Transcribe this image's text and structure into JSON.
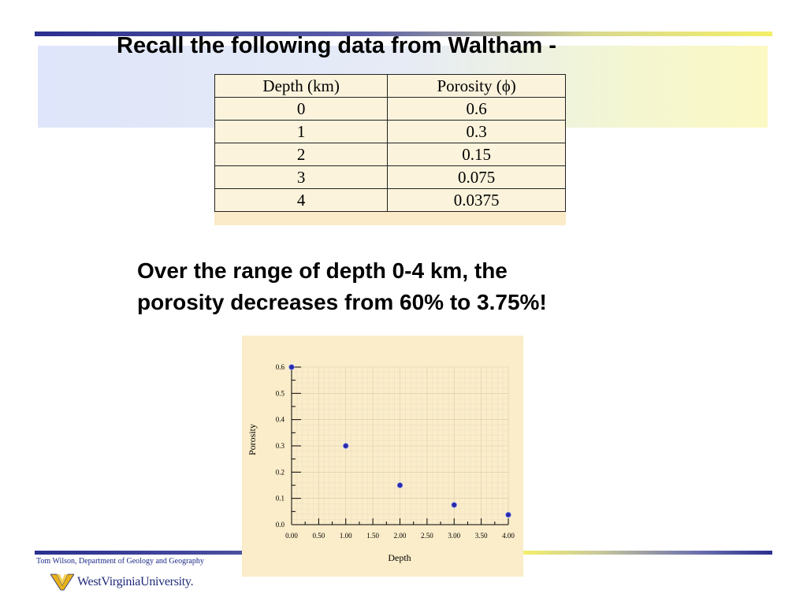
{
  "slide": {
    "title": "Recall the following data from Waltham -",
    "body_line1": "Over the range of depth 0-4 km, the",
    "body_line2": "porosity decreases from 60% to 3.75%!"
  },
  "table": {
    "headers": [
      "Depth (km)",
      "Porosity (ϕ)"
    ],
    "rows": [
      [
        "0",
        "0.6"
      ],
      [
        "1",
        "0.3"
      ],
      [
        "2",
        "0.15"
      ],
      [
        "3",
        "0.075"
      ],
      [
        "4",
        "0.0375"
      ]
    ]
  },
  "chart_data": {
    "type": "scatter",
    "title": "",
    "xlabel": "Depth",
    "ylabel": "Porosity",
    "x": [
      0,
      1,
      2,
      3,
      4
    ],
    "y": [
      0.6,
      0.3,
      0.15,
      0.075,
      0.0375
    ],
    "xlim": [
      0,
      4
    ],
    "ylim": [
      0,
      0.6
    ],
    "x_ticks": [
      "0.00",
      "0.50",
      "1.00",
      "1.50",
      "2.00",
      "2.50",
      "3.00",
      "3.50",
      "4.00"
    ],
    "y_ticks": [
      "0.0",
      "0.1",
      "0.2",
      "0.3",
      "0.4",
      "0.5",
      "0.6"
    ],
    "grid": true,
    "marker_color": "#2a2aa8"
  },
  "footer": {
    "credit": "Tom Wilson, Department of Geology and Geography",
    "logo_text": "WestVirginiaUniversity."
  },
  "colors": {
    "rule_blue": "#2b2f8f",
    "rule_yellow": "#f3ef6a",
    "table_bg": "#fbf3dc",
    "chart_bg": "#fbedc9"
  }
}
